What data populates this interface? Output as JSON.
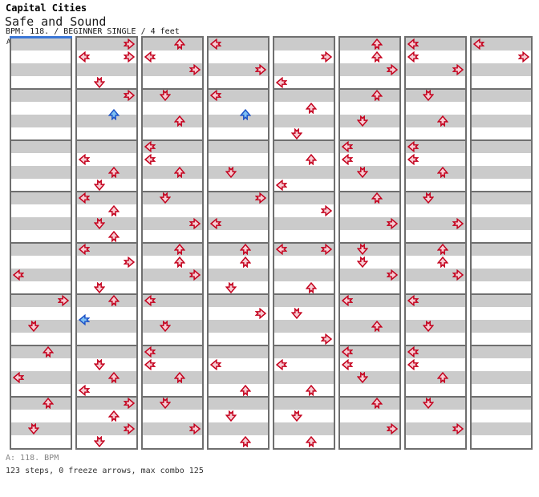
{
  "header": {
    "artist": "Capital Cities",
    "title": "Safe and Sound",
    "meta": "BPM: 118. / BEGINNER SINGLE / 4 feet"
  },
  "footer": {
    "bpm_line": "A: 118. BPM",
    "stats_line": "123 steps, 0 freeze arrows, max combo 125"
  },
  "chart": {
    "section_label": "A",
    "columns": 8,
    "beats_per_column": 32,
    "beats_per_measure": 4,
    "lanes": [
      "left",
      "down",
      "up",
      "right"
    ],
    "colors": {
      "quarter_fill": "#f6cdd3",
      "quarter_stroke": "#c4001d",
      "eighth_fill": "#7fc0f2",
      "eighth_stroke": "#1c52c8",
      "row_gray": "#cbcbcb",
      "grid": "#6f6f6f",
      "start_line": "#3a76d6"
    },
    "note_columns": [
      {
        "col": 0,
        "steps": [
          [
            18,
            "L"
          ],
          [
            20,
            "R"
          ],
          [
            22,
            "D"
          ],
          [
            24,
            "U"
          ],
          [
            26,
            "L"
          ],
          [
            28,
            "U"
          ],
          [
            30,
            "D"
          ]
        ]
      },
      {
        "col": 1,
        "steps": [
          [
            0,
            "R"
          ],
          [
            1,
            "L"
          ],
          [
            1,
            "R"
          ],
          [
            3,
            "D"
          ],
          [
            4,
            "R"
          ],
          [
            9,
            "L"
          ],
          [
            10,
            "U"
          ],
          [
            11,
            "D"
          ],
          [
            12,
            "L"
          ],
          [
            13,
            "U"
          ],
          [
            14,
            "D"
          ],
          [
            15,
            "U"
          ],
          [
            16,
            "L"
          ],
          [
            17,
            "R"
          ],
          [
            19,
            "D"
          ],
          [
            20,
            "U"
          ],
          [
            25,
            "D"
          ],
          [
            26,
            "U"
          ],
          [
            27,
            "L"
          ],
          [
            28,
            "R"
          ],
          [
            29,
            "U"
          ],
          [
            30,
            "R"
          ],
          [
            31,
            "D"
          ]
        ]
      },
      {
        "col": 2,
        "steps": [
          [
            0,
            "U"
          ],
          [
            1,
            "L"
          ],
          [
            2,
            "R"
          ],
          [
            4,
            "D"
          ],
          [
            6,
            "U"
          ],
          [
            8,
            "L"
          ],
          [
            9,
            "L"
          ],
          [
            10,
            "U"
          ],
          [
            12,
            "D"
          ],
          [
            14,
            "R"
          ],
          [
            16,
            "U"
          ],
          [
            17,
            "U"
          ],
          [
            18,
            "R"
          ],
          [
            20,
            "L"
          ],
          [
            22,
            "D"
          ],
          [
            24,
            "L"
          ],
          [
            25,
            "L"
          ],
          [
            26,
            "U"
          ],
          [
            28,
            "D"
          ],
          [
            30,
            "R"
          ]
        ]
      },
      {
        "col": 3,
        "steps": [
          [
            0,
            "L"
          ],
          [
            2,
            "R"
          ],
          [
            4,
            "L"
          ],
          [
            10,
            "D"
          ],
          [
            12,
            "R"
          ],
          [
            14,
            "L"
          ],
          [
            16,
            "U"
          ],
          [
            17,
            "U"
          ],
          [
            19,
            "D"
          ],
          [
            21,
            "R"
          ],
          [
            25,
            "L"
          ],
          [
            27,
            "U"
          ],
          [
            29,
            "D"
          ],
          [
            31,
            "U"
          ]
        ]
      },
      {
        "col": 4,
        "steps": [
          [
            1,
            "R"
          ],
          [
            3,
            "L"
          ],
          [
            5,
            "U"
          ],
          [
            7,
            "D"
          ],
          [
            9,
            "U"
          ],
          [
            11,
            "L"
          ],
          [
            13,
            "R"
          ],
          [
            16,
            "L"
          ],
          [
            16,
            "R"
          ],
          [
            19,
            "U"
          ],
          [
            21,
            "D"
          ],
          [
            23,
            "R"
          ],
          [
            25,
            "L"
          ],
          [
            27,
            "U"
          ],
          [
            29,
            "D"
          ],
          [
            31,
            "U"
          ]
        ]
      },
      {
        "col": 5,
        "steps": [
          [
            0,
            "U"
          ],
          [
            1,
            "U"
          ],
          [
            2,
            "R"
          ],
          [
            4,
            "U"
          ],
          [
            6,
            "D"
          ],
          [
            8,
            "L"
          ],
          [
            9,
            "L"
          ],
          [
            10,
            "D"
          ],
          [
            12,
            "U"
          ],
          [
            14,
            "R"
          ],
          [
            16,
            "D"
          ],
          [
            17,
            "D"
          ],
          [
            18,
            "R"
          ],
          [
            20,
            "L"
          ],
          [
            22,
            "U"
          ],
          [
            24,
            "L"
          ],
          [
            25,
            "L"
          ],
          [
            26,
            "D"
          ],
          [
            28,
            "U"
          ],
          [
            30,
            "R"
          ]
        ]
      },
      {
        "col": 6,
        "steps": [
          [
            0,
            "L"
          ],
          [
            1,
            "L"
          ],
          [
            2,
            "R"
          ],
          [
            4,
            "D"
          ],
          [
            6,
            "U"
          ],
          [
            8,
            "L"
          ],
          [
            9,
            "L"
          ],
          [
            10,
            "U"
          ],
          [
            12,
            "D"
          ],
          [
            14,
            "R"
          ],
          [
            16,
            "U"
          ],
          [
            17,
            "U"
          ],
          [
            18,
            "R"
          ],
          [
            20,
            "L"
          ],
          [
            22,
            "D"
          ],
          [
            24,
            "L"
          ],
          [
            25,
            "L"
          ],
          [
            26,
            "U"
          ],
          [
            28,
            "D"
          ],
          [
            30,
            "R"
          ]
        ]
      },
      {
        "col": 7,
        "steps": [
          [
            0,
            "L"
          ],
          [
            1,
            "R"
          ]
        ]
      }
    ],
    "eighth_steps": [
      {
        "col": 1,
        "beat": 5.5,
        "dir": "U"
      },
      {
        "col": 1,
        "beat": 21.5,
        "dir": "L"
      },
      {
        "col": 3,
        "beat": 5.5,
        "dir": "U"
      }
    ]
  }
}
